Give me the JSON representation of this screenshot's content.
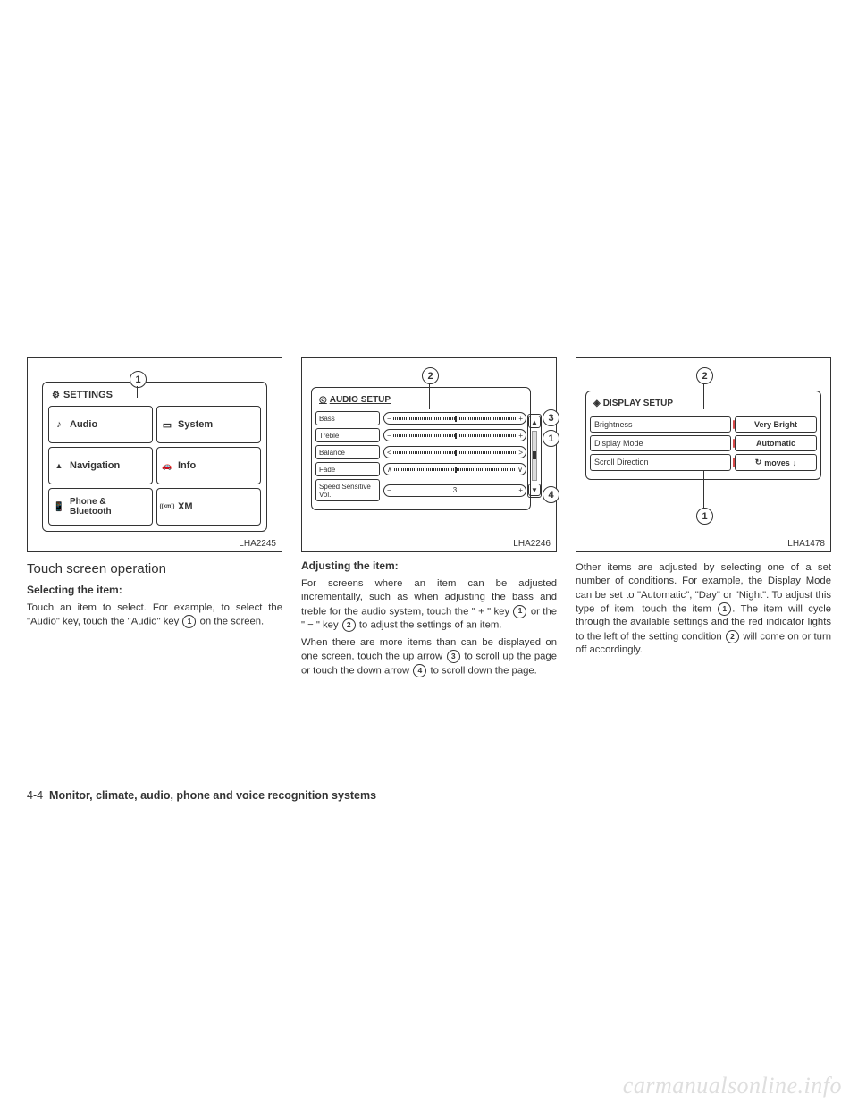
{
  "fig1": {
    "label": "LHA2245",
    "title": "SETTINGS",
    "callout1": "1",
    "buttons": [
      {
        "icon": "note-icon",
        "label": "Audio"
      },
      {
        "icon": "screen-icon",
        "label": "System"
      },
      {
        "icon": "nav-icon",
        "label": "Navigation"
      },
      {
        "icon": "car-icon",
        "label": "Info"
      },
      {
        "icon": "phone-icon",
        "label": "Phone & Bluetooth"
      },
      {
        "icon": "xm-icon",
        "label": "XM"
      }
    ]
  },
  "fig2": {
    "label": "LHA2246",
    "title": "AUDIO SETUP",
    "callouts": {
      "c1": "1",
      "c2": "2",
      "c3": "3",
      "c4": "4"
    },
    "rows": [
      {
        "label": "Bass",
        "left": "−",
        "right": "+"
      },
      {
        "label": "Treble",
        "left": "−",
        "right": "+"
      },
      {
        "label": "Balance",
        "left": "<",
        "right": ">"
      },
      {
        "label": "Fade",
        "left": "∧",
        "right": "∨"
      },
      {
        "label": "Speed Sensitive Vol.",
        "left": "−",
        "center": "3",
        "right": "+"
      }
    ]
  },
  "fig3": {
    "label": "LHA1478",
    "title": "DISPLAY SETUP",
    "callouts": {
      "c1": "1",
      "c2": "2"
    },
    "rows": [
      {
        "label": "Brightness",
        "value": "Very Bright"
      },
      {
        "label": "Display Mode",
        "value": "Automatic"
      },
      {
        "label": "Scroll Direction",
        "value": "moves",
        "prefix": "↻",
        "suffix": "↓"
      }
    ]
  },
  "col1": {
    "h1": "Touch screen operation",
    "h2": "Selecting the item:",
    "p1a": "Touch an item to select. For example, to select the \"Audio\" key, touch the \"Audio\" key ",
    "p1b": " on the screen.",
    "c1": "1"
  },
  "col2": {
    "h2": "Adjusting the item:",
    "p1a": "For screens where an item can be adjusted incrementally, such as when adjusting the bass and treble for the audio system, touch the \" + \" key ",
    "p1b": " or the \" − \" key ",
    "p1c": " to adjust the settings of an item.",
    "p2a": "When there are more items than can be displayed on one screen, touch the up arrow ",
    "p2b": " to scroll up the page or touch the down arrow ",
    "p2c": " to scroll down the page.",
    "c1": "1",
    "c2": "2",
    "c3": "3",
    "c4": "4"
  },
  "col3": {
    "p1a": "Other items are adjusted by selecting one of a set number of conditions. For example, the Display Mode can be set to \"Automatic\", \"Day\" or \"Night\". To adjust this type of item, touch the item ",
    "p1b": ". The item will cycle through the available settings and the red indicator lights to the left of the setting condition ",
    "p1c": " will come on or turn off accordingly.",
    "c1": "1",
    "c2": "2"
  },
  "footer": {
    "page": "4-4",
    "section": "Monitor, climate, audio, phone and voice recognition systems"
  },
  "watermark": "carmanualsonline.info"
}
